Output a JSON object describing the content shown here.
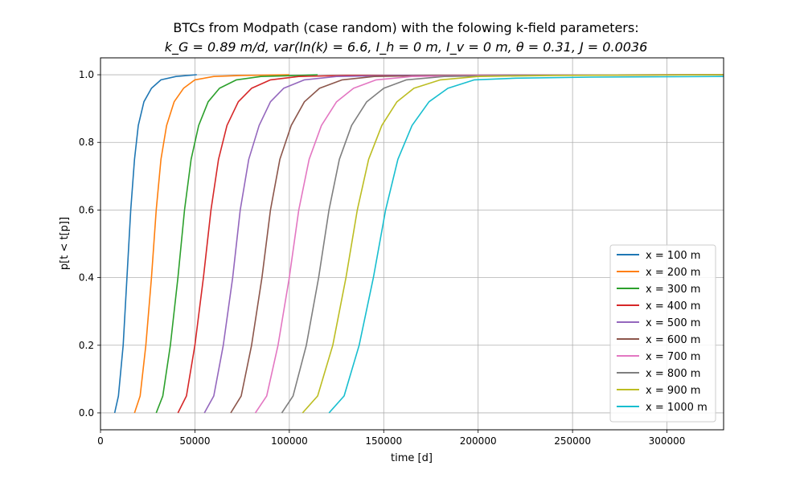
{
  "chart_data": {
    "type": "line",
    "title_line1": "BTCs from Modpath (case random) with the folowing k-field parameters:",
    "title_line2": "k_G = 0.89 m/d, var(ln(k) = 6.6, I_h = 0 m, I_v = 0 m, θ = 0.31, J = 0.0036",
    "xlabel": "time [d]",
    "ylabel": "p[t < t[p]]",
    "xlim": [
      0,
      330000
    ],
    "ylim": [
      -0.05,
      1.05
    ],
    "xticks": [
      0,
      50000,
      100000,
      150000,
      200000,
      250000,
      300000
    ],
    "xtick_labels": [
      "0",
      "50000",
      "100000",
      "150000",
      "200000",
      "250000",
      "300000"
    ],
    "yticks": [
      0.0,
      0.2,
      0.4,
      0.6,
      0.8,
      1.0
    ],
    "ytick_labels": [
      "0.0",
      "0.2",
      "0.4",
      "0.6",
      "0.8",
      "1.0"
    ],
    "grid": true,
    "legend_position": "lower-right",
    "series": [
      {
        "name": "x = 100 m",
        "color": "#1f77b4",
        "x": [
          7500,
          9500,
          12000,
          14000,
          16000,
          18000,
          20000,
          23000,
          27000,
          32000,
          40000,
          51000
        ],
        "y": [
          0.0,
          0.05,
          0.2,
          0.4,
          0.6,
          0.75,
          0.85,
          0.92,
          0.96,
          0.985,
          0.995,
          1.0
        ]
      },
      {
        "name": "x = 200 m",
        "color": "#ff7f0e",
        "x": [
          18000,
          21000,
          24000,
          27000,
          29500,
          32000,
          35000,
          39000,
          44000,
          50000,
          60000,
          75000,
          100000
        ],
        "y": [
          0.0,
          0.05,
          0.2,
          0.4,
          0.6,
          0.75,
          0.85,
          0.92,
          0.96,
          0.985,
          0.995,
          0.998,
          1.0
        ]
      },
      {
        "name": "x = 300 m",
        "color": "#2ca02c",
        "x": [
          29500,
          33000,
          37000,
          41000,
          44500,
          48000,
          52000,
          57000,
          63000,
          72000,
          85000,
          105000,
          115000
        ],
        "y": [
          0.0,
          0.05,
          0.2,
          0.4,
          0.6,
          0.75,
          0.85,
          0.92,
          0.96,
          0.985,
          0.995,
          0.998,
          1.0
        ]
      },
      {
        "name": "x = 400 m",
        "color": "#d62728",
        "x": [
          41000,
          45500,
          50000,
          54500,
          58500,
          62500,
          67000,
          73000,
          80000,
          90000,
          105000,
          130000,
          330000
        ],
        "y": [
          0.0,
          0.05,
          0.2,
          0.4,
          0.6,
          0.75,
          0.85,
          0.92,
          0.96,
          0.985,
          0.995,
          0.998,
          1.0
        ]
      },
      {
        "name": "x = 500 m",
        "color": "#9467bd",
        "x": [
          55000,
          60000,
          65000,
          70000,
          74000,
          78500,
          84000,
          90000,
          97000,
          108000,
          125000,
          160000,
          330000
        ],
        "y": [
          0.0,
          0.05,
          0.2,
          0.4,
          0.6,
          0.75,
          0.85,
          0.92,
          0.96,
          0.985,
          0.995,
          0.998,
          1.0
        ]
      },
      {
        "name": "x = 600 m",
        "color": "#8c564b",
        "x": [
          69000,
          74500,
          80000,
          85500,
          90000,
          95000,
          101000,
          108000,
          116000,
          128000,
          145000,
          180000,
          330000
        ],
        "y": [
          0.0,
          0.05,
          0.2,
          0.4,
          0.6,
          0.75,
          0.85,
          0.92,
          0.96,
          0.985,
          0.995,
          0.998,
          1.0
        ]
      },
      {
        "name": "x = 700 m",
        "color": "#e377c2",
        "x": [
          82000,
          88000,
          94000,
          100000,
          105000,
          110500,
          117000,
          125000,
          134000,
          146000,
          165000,
          200000,
          330000
        ],
        "y": [
          0.0,
          0.05,
          0.2,
          0.4,
          0.6,
          0.75,
          0.85,
          0.92,
          0.96,
          0.985,
          0.995,
          0.998,
          1.0
        ]
      },
      {
        "name": "x = 800 m",
        "color": "#7f7f7f",
        "x": [
          96000,
          102000,
          109000,
          115500,
          121000,
          126500,
          133000,
          141000,
          150000,
          162000,
          182000,
          220000,
          330000
        ],
        "y": [
          0.0,
          0.05,
          0.2,
          0.4,
          0.6,
          0.75,
          0.85,
          0.92,
          0.96,
          0.985,
          0.995,
          0.998,
          1.0
        ]
      },
      {
        "name": "x = 900 m",
        "color": "#bcbd22",
        "x": [
          107000,
          115000,
          123000,
          130000,
          136000,
          142000,
          149000,
          157000,
          166000,
          180000,
          200000,
          240000,
          330000
        ],
        "y": [
          0.0,
          0.05,
          0.2,
          0.4,
          0.6,
          0.75,
          0.85,
          0.92,
          0.96,
          0.985,
          0.995,
          0.998,
          1.0
        ]
      },
      {
        "name": "x = 1000 m",
        "color": "#17becf",
        "x": [
          121000,
          129000,
          137000,
          144500,
          151000,
          157500,
          165000,
          174000,
          184000,
          198000,
          220000,
          260000,
          330000
        ],
        "y": [
          0.0,
          0.05,
          0.2,
          0.4,
          0.6,
          0.75,
          0.85,
          0.92,
          0.96,
          0.985,
          0.99,
          0.993,
          0.995
        ]
      }
    ]
  }
}
